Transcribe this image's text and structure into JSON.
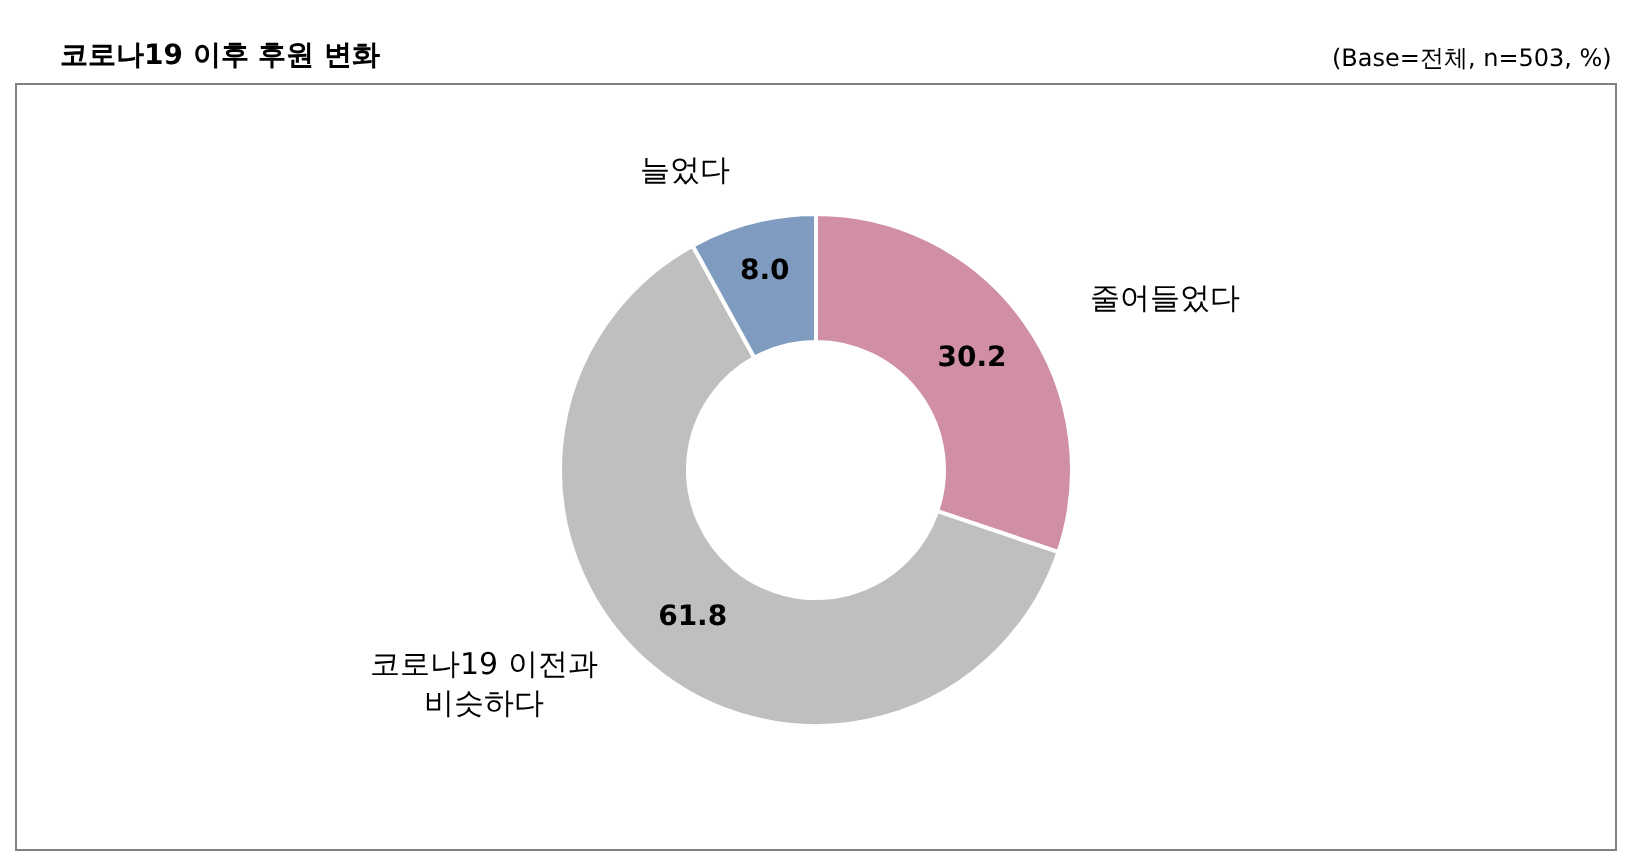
{
  "chart_data": {
    "type": "donut",
    "title": "코로나19 이후 후원 변화",
    "annotations": [
      "(Base=전체, n=503, %)"
    ],
    "categories": [
      "줄어들었다",
      "코로나19 이전과\n비슷하다",
      "늘었다"
    ],
    "values": [
      30.2,
      61.8,
      8.0
    ],
    "colors": [
      "#d08fa3",
      "#bfbfbf",
      "#7f9cc0"
    ],
    "value_labels": [
      "30.2",
      "61.8",
      "8.0"
    ],
    "legend": false
  }
}
